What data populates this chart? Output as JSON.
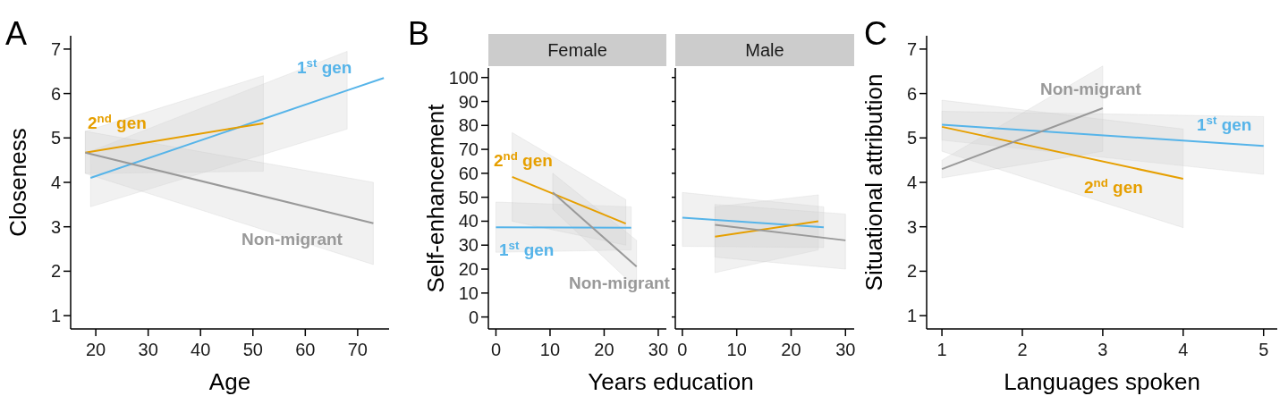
{
  "chart_data": [
    {
      "type": "line",
      "title": "A",
      "xlabel": "Age",
      "ylabel": "Closeness",
      "xlim": [
        15.2,
        76
      ],
      "xticks": [
        20,
        30,
        40,
        50,
        60,
        70
      ],
      "ylim": [
        0.7,
        7.3
      ],
      "yticks": [
        1,
        2,
        3,
        4,
        5,
        6,
        7
      ],
      "series": [
        {
          "name": "1$^{st}$ gen",
          "color": "#56b4e9",
          "x": [
            19,
            68,
            75
          ],
          "values": [
            4.1,
            6.07,
            6.35
          ],
          "lower": [
            3.45,
            5.2,
            null
          ],
          "upper": [
            4.7,
            6.95,
            null
          ]
        },
        {
          "name": "2$^{nd}$ gen",
          "color": "#e69f00",
          "x": [
            18,
            52
          ],
          "values": [
            4.67,
            5.33
          ],
          "lower": [
            4.2,
            4.25
          ],
          "upper": [
            5.15,
            6.4
          ]
        },
        {
          "name": "Non-migrant",
          "color": "#999999",
          "x": [
            18,
            73
          ],
          "values": [
            4.67,
            3.08
          ],
          "lower": [
            4.2,
            2.15
          ],
          "upper": [
            5.15,
            4.0
          ]
        }
      ]
    },
    {
      "type": "line",
      "title": "B",
      "subtitle": "Female",
      "xlabel": "Years education",
      "ylabel": "Self-enhancement",
      "xlim": [
        -1.4,
        31.5
      ],
      "xticks": [
        0,
        10,
        20,
        30
      ],
      "ylim": [
        -5,
        104
      ],
      "yticks": [
        0,
        10,
        20,
        30,
        40,
        50,
        60,
        70,
        80,
        90,
        100
      ],
      "series": [
        {
          "name": "1$^{st}$ gen",
          "color": "#56b4e9",
          "x": [
            0,
            25
          ],
          "values": [
            37.5,
            37.3
          ],
          "lower": [
            27,
            28
          ],
          "upper": [
            48,
            46
          ]
        },
        {
          "name": "2$^{nd}$ gen",
          "color": "#e69f00",
          "x": [
            3,
            24
          ],
          "values": [
            58.5,
            39
          ],
          "lower": [
            40,
            30
          ],
          "upper": [
            77,
            49
          ]
        },
        {
          "name": "Non-migrant",
          "color": "#999999",
          "x": [
            10.5,
            26
          ],
          "values": [
            52,
            21
          ],
          "lower": [
            45,
            12
          ],
          "upper": [
            60,
            32
          ]
        }
      ]
    },
    {
      "type": "line",
      "subtitle": "Male",
      "xlim": [
        -1.3,
        31.6
      ],
      "xticks": [
        0,
        10,
        20,
        30
      ],
      "ylim": [
        -5,
        104
      ],
      "yticks": [
        0,
        10,
        20,
        30,
        40,
        50,
        60,
        70,
        80,
        90,
        100
      ],
      "tick_labels": "x",
      "series": [
        {
          "color": "#56b4e9",
          "x": [
            0,
            26
          ],
          "values": [
            41.5,
            37.5
          ],
          "lower": [
            29.5,
            29
          ],
          "upper": [
            52,
            46
          ]
        },
        {
          "color": "#e69f00",
          "x": [
            6,
            25
          ],
          "values": [
            33.5,
            40
          ],
          "lower": [
            18.5,
            28
          ],
          "upper": [
            46,
            51
          ]
        },
        {
          "color": "#999999",
          "x": [
            6,
            30
          ],
          "values": [
            38.5,
            32
          ],
          "lower": [
            25,
            20
          ],
          "upper": [
            47,
            43
          ]
        }
      ]
    },
    {
      "type": "line",
      "title": "C",
      "xlabel": "Languages spoken",
      "ylabel": "Situational attribution",
      "xlim": [
        0.81,
        5.17
      ],
      "xticks": [
        1,
        2,
        3,
        4,
        5
      ],
      "ylim": [
        0.7,
        7.3
      ],
      "yticks": [
        1,
        2,
        3,
        4,
        5,
        6,
        7
      ],
      "series": [
        {
          "name": "1$^{st}$ gen",
          "color": "#56b4e9",
          "x": [
            1,
            5
          ],
          "values": [
            5.3,
            4.82
          ],
          "lower": [
            4.95,
            4.18
          ],
          "upper": [
            5.6,
            5.48
          ]
        },
        {
          "name": "2$^{nd}$ gen",
          "color": "#e69f00",
          "x": [
            1,
            4
          ],
          "values": [
            5.25,
            4.08
          ],
          "lower": [
            4.7,
            2.98
          ],
          "upper": [
            5.85,
            5.2
          ]
        },
        {
          "name": "Non-migrant",
          "color": "#999999",
          "x": [
            1,
            3
          ],
          "values": [
            4.3,
            5.67
          ],
          "lower": [
            4.1,
            4.7
          ],
          "upper": [
            4.5,
            6.62
          ]
        }
      ]
    }
  ]
}
